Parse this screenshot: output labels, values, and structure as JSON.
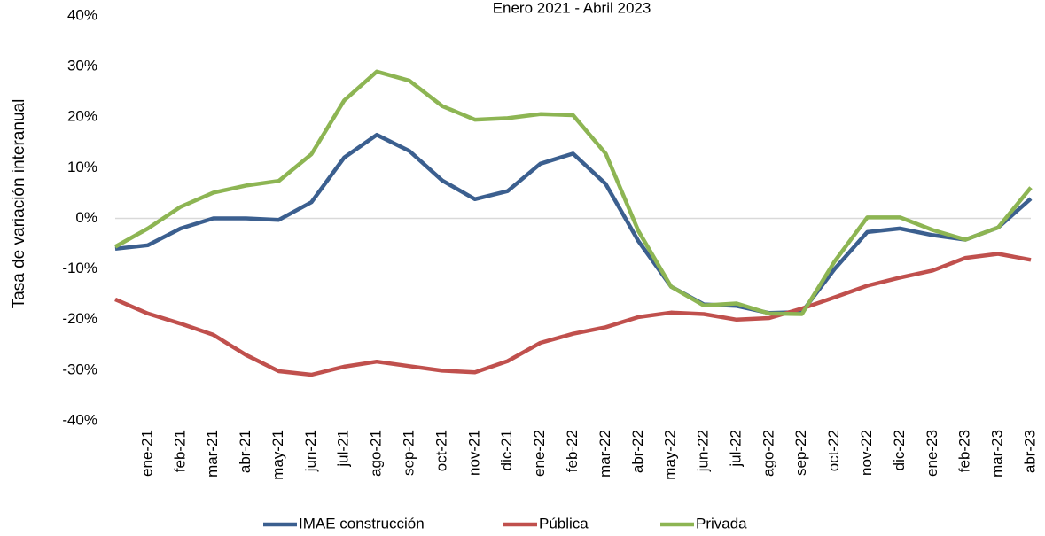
{
  "chart_data": {
    "type": "line",
    "subtitle": "Enero 2021 - Abril 2023",
    "y_label": "Tasa de variación interanual",
    "categories": [
      null,
      "ene-21",
      "feb-21",
      "mar-21",
      "abr-21",
      "may-21",
      "jun-21",
      "jul-21",
      "ago-21",
      "sep-21",
      "oct-21",
      "nov-21",
      "dic-21",
      "ene-22",
      "feb-22",
      "mar-22",
      "abr-22",
      "may-22",
      "jun-22",
      "jul-22",
      "ago-22",
      "sep-22",
      "oct-22",
      "nov-22",
      "dic-22",
      "ene-23",
      "feb-23",
      "mar-23",
      "abr-23"
    ],
    "series": [
      {
        "name": "IMAE construcción",
        "color": "#3b5f8f",
        "values": [
          -6,
          -5.3,
          -2,
          0,
          0,
          -0.3,
          3.2,
          12,
          16.5,
          13.3,
          7.5,
          3.8,
          5.4,
          10.8,
          12.8,
          6.8,
          -4.5,
          -13.5,
          -17,
          -17.3,
          -18.7,
          -18.5,
          -10,
          -2.7,
          -2,
          -3.3,
          -4.2,
          -1.8,
          3.9
        ]
      },
      {
        "name": "Pública",
        "color": "#c0504d",
        "values": [
          -16,
          -18.8,
          -20.8,
          -23,
          -27,
          -30.2,
          -30.9,
          -29.3,
          -28.3,
          -29.2,
          -30.1,
          -30.4,
          -28.2,
          -24.6,
          -22.8,
          -21.5,
          -19.5,
          -18.6,
          -18.9,
          -20,
          -19.7,
          -17.8,
          -15.6,
          -13.3,
          -11.7,
          -10.3,
          -7.8,
          -7,
          -8.2
        ]
      },
      {
        "name": "Privada",
        "color": "#8db553",
        "values": [
          -5.6,
          -2,
          2.3,
          5.1,
          6.5,
          7.4,
          12.7,
          23.3,
          29,
          27.2,
          22.2,
          19.5,
          19.8,
          20.6,
          20.4,
          12.8,
          -2.5,
          -13.5,
          -17.2,
          -16.8,
          -18.8,
          -18.9,
          -8.5,
          0.2,
          0.2,
          -2.3,
          -4.2,
          -1.8,
          6.1
        ]
      }
    ],
    "ylim": [
      -40,
      40
    ],
    "yticks": [
      {
        "value": -40,
        "label": "-40%"
      },
      {
        "value": -30,
        "label": "-30%"
      },
      {
        "value": -20,
        "label": "-20%"
      },
      {
        "value": -10,
        "label": "-10%"
      },
      {
        "value": 0,
        "label": "0%"
      },
      {
        "value": 10,
        "label": "10%"
      },
      {
        "value": 20,
        "label": "20%"
      },
      {
        "value": 30,
        "label": "30%"
      },
      {
        "value": 40,
        "label": "40%"
      }
    ],
    "grid": false
  }
}
